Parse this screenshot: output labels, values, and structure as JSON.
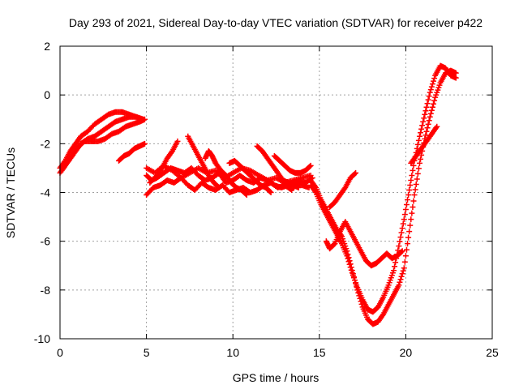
{
  "chart_data": {
    "type": "scatter",
    "title": "Day 293 of 2021, Sidereal Day-to-day VTEC variation (SDTVAR) for receiver p422",
    "xlabel": "GPS time / hours",
    "ylabel": "SDTVAR / TECUs",
    "xlim": [
      0,
      25
    ],
    "ylim": [
      -10,
      2
    ],
    "xticks": [
      "0",
      "5",
      "10",
      "15",
      "20",
      "25"
    ],
    "yticks": [
      "-10",
      "-8",
      "-6",
      "-4",
      "-2",
      "0",
      "2"
    ],
    "grid": true,
    "legend": "none",
    "marker": "plus",
    "color": "#ff0000",
    "series": [
      {
        "x": [
          0.0,
          0.3,
          0.6,
          0.9,
          1.2,
          1.6,
          2.0,
          2.4,
          2.8,
          3.2,
          3.6,
          4.0,
          4.4,
          4.8
        ],
        "y": [
          -3.2,
          -2.9,
          -2.6,
          -2.3,
          -2.0,
          -1.8,
          -1.7,
          -1.5,
          -1.3,
          -1.1,
          -1.0,
          -0.9,
          -0.9,
          -1.0
        ]
      },
      {
        "x": [
          0.0,
          0.3,
          0.6,
          0.9,
          1.2,
          1.6,
          2.0,
          2.4,
          2.8,
          3.2,
          3.6,
          4.0,
          4.4,
          4.8
        ],
        "y": [
          -3.0,
          -2.7,
          -2.3,
          -2.0,
          -1.7,
          -1.5,
          -1.2,
          -1.0,
          -0.8,
          -0.7,
          -0.7,
          -0.8,
          -0.9,
          -1.0
        ]
      },
      {
        "x": [
          0.1,
          0.4,
          0.8,
          1.1,
          1.4,
          1.8,
          2.2,
          2.6,
          3.0,
          3.4,
          3.8,
          4.2,
          4.6,
          4.9
        ],
        "y": [
          -3.1,
          -2.8,
          -2.4,
          -2.1,
          -1.9,
          -1.9,
          -1.9,
          -1.8,
          -1.6,
          -1.5,
          -1.3,
          -1.2,
          -1.1,
          -1.0
        ]
      },
      {
        "x": [
          3.4,
          3.7,
          4.0,
          4.3,
          4.6,
          4.9
        ],
        "y": [
          -2.7,
          -2.5,
          -2.4,
          -2.2,
          -2.1,
          -2.0
        ]
      },
      {
        "x": [
          5.0,
          5.3,
          5.6,
          6.0,
          6.4,
          6.8,
          7.2,
          7.6,
          8.0,
          8.4,
          8.8,
          9.2,
          9.6,
          10.0,
          10.4,
          10.8,
          11.2,
          11.6,
          12.0,
          12.4,
          12.8,
          13.2,
          13.6,
          14.0,
          14.4
        ],
        "y": [
          -3.3,
          -3.5,
          -3.4,
          -3.2,
          -3.0,
          -3.1,
          -3.2,
          -3.0,
          -3.3,
          -3.5,
          -3.4,
          -3.2,
          -3.6,
          -3.5,
          -3.3,
          -3.5,
          -3.6,
          -3.4,
          -3.5,
          -3.7,
          -3.8,
          -3.7,
          -3.6,
          -3.7,
          -3.8
        ]
      },
      {
        "x": [
          5.0,
          5.4,
          5.8,
          6.2,
          6.6,
          7.0,
          7.4,
          7.8,
          8.2,
          8.6,
          9.0,
          9.4,
          9.8,
          10.2,
          10.6,
          11.0,
          11.4,
          11.8,
          12.2,
          12.6,
          13.0,
          13.4,
          13.8,
          14.2,
          14.6
        ],
        "y": [
          -4.1,
          -3.8,
          -3.7,
          -3.5,
          -3.6,
          -3.4,
          -3.7,
          -3.9,
          -3.6,
          -3.8,
          -3.9,
          -3.7,
          -4.0,
          -3.9,
          -3.8,
          -4.0,
          -3.9,
          -3.7,
          -3.6,
          -3.8,
          -3.7,
          -3.9,
          -3.5,
          -3.6,
          -3.4
        ]
      },
      {
        "x": [
          5.0,
          5.5,
          6.0,
          6.5,
          7.0,
          7.5,
          8.0,
          8.5,
          9.0,
          9.5,
          10.0,
          10.5,
          11.0,
          11.5,
          12.0,
          12.5,
          13.0,
          13.5,
          14.0,
          14.5
        ],
        "y": [
          -3.0,
          -3.2,
          -2.9,
          -3.1,
          -3.4,
          -3.2,
          -3.0,
          -3.2,
          -3.1,
          -3.4,
          -3.2,
          -3.0,
          -3.1,
          -3.3,
          -3.5,
          -3.4,
          -3.6,
          -3.5,
          -3.4,
          -3.3
        ]
      },
      {
        "x": [
          5.2,
          5.6,
          5.9,
          6.2,
          6.5,
          6.8
        ],
        "y": [
          -3.6,
          -3.3,
          -3.0,
          -2.6,
          -2.3,
          -1.9
        ]
      },
      {
        "x": [
          7.4,
          7.7,
          8.0,
          8.3,
          8.6,
          8.9,
          9.2
        ],
        "y": [
          -1.7,
          -2.1,
          -2.5,
          -2.9,
          -3.3,
          -3.6,
          -3.8
        ]
      },
      {
        "x": [
          8.4,
          8.6,
          8.8,
          9.0,
          9.3,
          9.6,
          9.9,
          10.2,
          10.5,
          10.8
        ],
        "y": [
          -2.6,
          -2.3,
          -2.5,
          -2.8,
          -3.1,
          -3.3,
          -3.6,
          -3.8,
          -3.9,
          -4.1
        ]
      },
      {
        "x": [
          9.8,
          10.1,
          10.4,
          10.7,
          11.0,
          11.3,
          11.6,
          11.9,
          12.2
        ],
        "y": [
          -2.8,
          -2.7,
          -2.9,
          -3.1,
          -3.3,
          -3.5,
          -3.7,
          -3.8,
          -4.0
        ]
      },
      {
        "x": [
          11.4,
          11.7,
          12.0,
          12.3,
          12.6,
          12.9,
          13.2,
          13.5,
          13.8
        ],
        "y": [
          -2.1,
          -2.3,
          -2.6,
          -2.9,
          -3.2,
          -3.5,
          -3.6,
          -3.7,
          -3.8
        ]
      },
      {
        "x": [
          12.4,
          12.7,
          13.0,
          13.3,
          13.6,
          13.9,
          14.2,
          14.5
        ],
        "y": [
          -2.5,
          -2.7,
          -2.9,
          -3.1,
          -3.2,
          -3.2,
          -3.1,
          -2.9
        ]
      },
      {
        "x": [
          14.5,
          14.8,
          15.1,
          15.4,
          15.7,
          16.0,
          16.3,
          16.6,
          16.9,
          17.2,
          17.5,
          17.8,
          18.1,
          18.4,
          18.7,
          19.0,
          19.3,
          19.6,
          19.9,
          20.2,
          20.5,
          20.8,
          21.1,
          21.4,
          21.7,
          22.0,
          22.3,
          22.6,
          22.9
        ],
        "y": [
          -3.5,
          -3.8,
          -4.3,
          -4.7,
          -5.1,
          -5.5,
          -5.8,
          -6.4,
          -7.2,
          -8.0,
          -8.7,
          -9.2,
          -9.4,
          -9.3,
          -9.0,
          -8.6,
          -8.2,
          -7.8,
          -7.1,
          -5.6,
          -4.1,
          -2.8,
          -1.8,
          -0.9,
          -0.1,
          0.5,
          0.9,
          1.0,
          0.9
        ]
      },
      {
        "x": [
          14.5,
          14.8,
          15.1,
          15.4,
          15.7,
          16.0,
          16.3,
          16.6,
          16.9,
          17.2,
          17.5,
          17.8,
          18.1,
          18.4,
          18.7,
          19.0,
          19.3,
          19.6,
          19.9,
          20.2,
          20.5,
          20.8,
          21.1,
          21.4,
          21.7,
          22.0,
          22.3,
          22.6,
          22.9
        ],
        "y": [
          -3.7,
          -4.0,
          -4.5,
          -4.9,
          -5.3,
          -5.7,
          -6.1,
          -6.6,
          -7.3,
          -7.9,
          -8.4,
          -8.8,
          -8.9,
          -8.7,
          -8.3,
          -7.8,
          -7.2,
          -6.2,
          -5.1,
          -3.9,
          -2.7,
          -1.7,
          -0.8,
          0.1,
          0.8,
          1.2,
          1.1,
          0.8,
          0.7
        ]
      },
      {
        "x": [
          15.4,
          15.6,
          15.9,
          16.2,
          16.5,
          16.8,
          17.1,
          17.4,
          17.7,
          18.0,
          18.3,
          18.6,
          18.9,
          19.2,
          19.5,
          19.8
        ],
        "y": [
          -6.0,
          -6.3,
          -6.1,
          -5.6,
          -5.2,
          -5.6,
          -6.0,
          -6.4,
          -6.8,
          -7.0,
          -6.9,
          -6.7,
          -6.5,
          -6.7,
          -6.6,
          -6.4
        ]
      },
      {
        "x": [
          15.6,
          15.9,
          16.2,
          16.5,
          16.8,
          17.1
        ],
        "y": [
          -4.6,
          -4.4,
          -4.1,
          -3.8,
          -3.4,
          -3.2
        ]
      },
      {
        "x": [
          20.3,
          20.6,
          20.9,
          21.2,
          21.5,
          21.8
        ],
        "y": [
          -2.8,
          -2.5,
          -2.2,
          -1.9,
          -1.6,
          -1.3
        ]
      }
    ]
  }
}
